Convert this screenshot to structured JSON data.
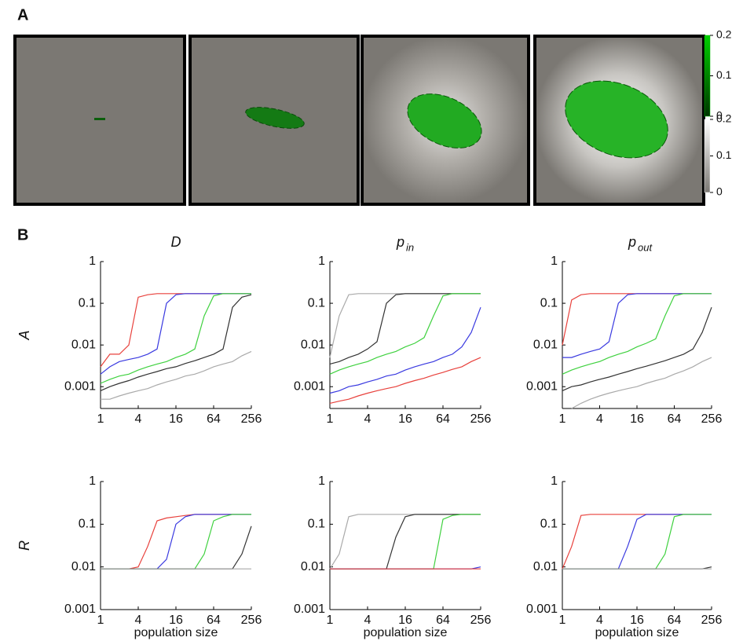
{
  "panel_labels": [
    "A",
    "B"
  ],
  "colorbars": [
    {
      "lim": [
        0,
        0.2
      ],
      "ticks": [
        0.2,
        0.1,
        0
      ],
      "color": "#00c000"
    },
    {
      "lim": [
        0,
        0.2
      ],
      "ticks": [
        0.2,
        0.1,
        0
      ],
      "color": "#ffffff"
    }
  ],
  "chart_data": [
    {
      "type": "line",
      "title": "D",
      "ylabel": "A",
      "xlog": true,
      "ylog": true,
      "x": [
        1,
        1.41,
        2,
        2.83,
        4,
        5.66,
        8,
        11.3,
        16,
        22.6,
        32,
        45.3,
        64,
        90.5,
        128,
        181,
        256
      ],
      "xlim": [
        1,
        256
      ],
      "xticks": [
        1,
        4,
        16,
        64,
        256
      ],
      "ylim": [
        0.0003,
        1
      ],
      "yticks": [
        1,
        0.1,
        0.01,
        0.001
      ],
      "series": [
        {
          "color": "#e8413c",
          "values": [
            0.003,
            0.006,
            0.006,
            0.01,
            0.14,
            0.16,
            0.17,
            0.17,
            0.17,
            0.17,
            0.17,
            0.17,
            0.17,
            0.17,
            0.17,
            0.17,
            0.17
          ]
        },
        {
          "color": "#3a3ae0",
          "values": [
            0.002,
            0.003,
            0.004,
            0.0045,
            0.005,
            0.006,
            0.008,
            0.1,
            0.16,
            0.17,
            0.17,
            0.17,
            0.17,
            0.17,
            0.17,
            0.17,
            0.17
          ]
        },
        {
          "color": "#3fd13f",
          "values": [
            0.0012,
            0.0015,
            0.0018,
            0.002,
            0.0025,
            0.003,
            0.0035,
            0.004,
            0.005,
            0.006,
            0.008,
            0.05,
            0.15,
            0.17,
            0.17,
            0.17,
            0.17
          ]
        },
        {
          "color": "#333333",
          "values": [
            0.0008,
            0.001,
            0.0012,
            0.0014,
            0.0017,
            0.002,
            0.0023,
            0.0027,
            0.003,
            0.0036,
            0.0042,
            0.005,
            0.006,
            0.008,
            0.08,
            0.14,
            0.16
          ]
        },
        {
          "color": "#aaaaaa",
          "values": [
            0.0005,
            0.0005,
            0.0006,
            0.0007,
            0.0008,
            0.0009,
            0.0011,
            0.0013,
            0.0015,
            0.0018,
            0.002,
            0.0024,
            0.003,
            0.0035,
            0.004,
            0.0055,
            0.007
          ]
        }
      ]
    },
    {
      "type": "line",
      "title": "p",
      "title_subscript": "in",
      "xlog": true,
      "ylog": true,
      "x": [
        1,
        1.41,
        2,
        2.83,
        4,
        5.66,
        8,
        11.3,
        16,
        22.6,
        32,
        45.3,
        64,
        90.5,
        128,
        181,
        256
      ],
      "xlim": [
        1,
        256
      ],
      "xticks": [
        1,
        4,
        16,
        64,
        256
      ],
      "ylim": [
        0.0003,
        1
      ],
      "yticks": [
        1,
        0.1,
        0.01,
        0.001
      ],
      "series": [
        {
          "color": "#aaaaaa",
          "values": [
            0.005,
            0.05,
            0.16,
            0.17,
            0.17,
            0.17,
            0.17,
            0.17,
            0.17,
            0.17,
            0.17,
            0.17,
            0.17,
            0.17,
            0.17,
            0.17,
            0.17
          ]
        },
        {
          "color": "#333333",
          "values": [
            0.0035,
            0.004,
            0.005,
            0.006,
            0.008,
            0.012,
            0.1,
            0.16,
            0.17,
            0.17,
            0.17,
            0.17,
            0.17,
            0.17,
            0.17,
            0.17,
            0.17
          ]
        },
        {
          "color": "#3fd13f",
          "values": [
            0.002,
            0.0025,
            0.003,
            0.0035,
            0.004,
            0.005,
            0.006,
            0.007,
            0.009,
            0.011,
            0.015,
            0.05,
            0.15,
            0.17,
            0.17,
            0.17,
            0.17
          ]
        },
        {
          "color": "#3a3ae0",
          "values": [
            0.0007,
            0.0008,
            0.001,
            0.0011,
            0.0013,
            0.0015,
            0.0018,
            0.002,
            0.0025,
            0.003,
            0.0035,
            0.004,
            0.005,
            0.006,
            0.009,
            0.02,
            0.08
          ]
        },
        {
          "color": "#e8413c",
          "values": [
            0.0004,
            0.00045,
            0.0005,
            0.0006,
            0.0007,
            0.0008,
            0.0009,
            0.001,
            0.0012,
            0.0014,
            0.0016,
            0.0019,
            0.0022,
            0.0026,
            0.003,
            0.004,
            0.005
          ]
        }
      ]
    },
    {
      "type": "line",
      "title": "p",
      "title_subscript": "out",
      "xlog": true,
      "ylog": true,
      "x": [
        1,
        1.41,
        2,
        2.83,
        4,
        5.66,
        8,
        11.3,
        16,
        22.6,
        32,
        45.3,
        64,
        90.5,
        128,
        181,
        256
      ],
      "xlim": [
        1,
        256
      ],
      "xticks": [
        1,
        4,
        16,
        64,
        256
      ],
      "ylim": [
        0.0003,
        1
      ],
      "yticks": [
        1,
        0.1,
        0.01,
        0.001
      ],
      "series": [
        {
          "color": "#e8413c",
          "values": [
            0.01,
            0.12,
            0.16,
            0.17,
            0.17,
            0.17,
            0.17,
            0.17,
            0.17,
            0.17,
            0.17,
            0.17,
            0.17,
            0.17,
            0.17,
            0.17,
            0.17
          ]
        },
        {
          "color": "#3a3ae0",
          "values": [
            0.005,
            0.005,
            0.006,
            0.007,
            0.008,
            0.012,
            0.1,
            0.16,
            0.17,
            0.17,
            0.17,
            0.17,
            0.17,
            0.17,
            0.17,
            0.17,
            0.17
          ]
        },
        {
          "color": "#3fd13f",
          "values": [
            0.002,
            0.0025,
            0.003,
            0.0035,
            0.004,
            0.005,
            0.006,
            0.007,
            0.009,
            0.011,
            0.014,
            0.05,
            0.15,
            0.17,
            0.17,
            0.17,
            0.17
          ]
        },
        {
          "color": "#333333",
          "values": [
            0.0008,
            0.001,
            0.0011,
            0.0013,
            0.0015,
            0.0017,
            0.002,
            0.0023,
            0.0027,
            0.0031,
            0.0036,
            0.0042,
            0.005,
            0.006,
            0.008,
            0.02,
            0.08
          ]
        },
        {
          "color": "#aaaaaa",
          "values": [
            null,
            0.0003,
            0.0004,
            0.0005,
            0.0006,
            0.0007,
            0.0008,
            0.0009,
            0.001,
            0.0012,
            0.0014,
            0.0016,
            0.002,
            0.0024,
            0.003,
            0.004,
            0.005
          ]
        }
      ]
    },
    {
      "type": "line",
      "ylabel": "R",
      "xlabel": "population size",
      "xlog": true,
      "ylog": true,
      "x": [
        1,
        1.41,
        2,
        2.83,
        4,
        5.66,
        8,
        11.3,
        16,
        22.6,
        32,
        45.3,
        64,
        90.5,
        128,
        181,
        256
      ],
      "xlim": [
        1,
        256
      ],
      "xticks": [
        1,
        4,
        16,
        64,
        256
      ],
      "ylim": [
        0.001,
        1
      ],
      "yticks": [
        1,
        0.1,
        0.01,
        0.001
      ],
      "series": [
        {
          "color": "#e8413c",
          "values": [
            0.009,
            0.009,
            0.009,
            0.009,
            0.01,
            0.03,
            0.12,
            0.14,
            0.15,
            0.16,
            0.17,
            0.17,
            0.17,
            0.17,
            0.17,
            0.17,
            0.17
          ]
        },
        {
          "color": "#3a3ae0",
          "values": [
            0.009,
            0.009,
            0.009,
            0.009,
            0.009,
            0.009,
            0.009,
            0.015,
            0.1,
            0.15,
            0.17,
            0.17,
            0.17,
            0.17,
            0.17,
            0.17,
            0.17
          ]
        },
        {
          "color": "#3fd13f",
          "values": [
            0.009,
            0.009,
            0.009,
            0.009,
            0.009,
            0.009,
            0.009,
            0.009,
            0.009,
            0.009,
            0.009,
            0.02,
            0.12,
            0.15,
            0.17,
            0.17,
            0.17
          ]
        },
        {
          "color": "#333333",
          "values": [
            0.009,
            0.009,
            0.009,
            0.009,
            0.009,
            0.009,
            0.009,
            0.009,
            0.009,
            0.009,
            0.009,
            0.009,
            0.009,
            0.009,
            0.009,
            0.02,
            0.09
          ]
        },
        {
          "color": "#aaaaaa",
          "values": [
            0.009,
            0.009,
            0.009,
            0.009,
            0.009,
            0.009,
            0.009,
            0.009,
            0.009,
            0.009,
            0.009,
            0.009,
            0.009,
            0.009,
            0.009,
            0.009,
            0.009
          ]
        }
      ]
    },
    {
      "type": "line",
      "xlabel": "population size",
      "xlog": true,
      "ylog": true,
      "x": [
        1,
        1.41,
        2,
        2.83,
        4,
        5.66,
        8,
        11.3,
        16,
        22.6,
        32,
        45.3,
        64,
        90.5,
        128,
        181,
        256
      ],
      "xlim": [
        1,
        256
      ],
      "xticks": [
        1,
        4,
        16,
        64,
        256
      ],
      "ylim": [
        0.001,
        1
      ],
      "yticks": [
        1,
        0.1,
        0.01,
        0.001
      ],
      "series": [
        {
          "color": "#aaaaaa",
          "values": [
            0.009,
            0.02,
            0.15,
            0.17,
            0.17,
            0.17,
            0.17,
            0.17,
            0.17,
            0.17,
            0.17,
            0.17,
            0.17,
            0.17,
            0.17,
            0.17,
            0.17
          ]
        },
        {
          "color": "#333333",
          "values": [
            0.009,
            0.009,
            0.009,
            0.009,
            0.009,
            0.009,
            0.009,
            0.05,
            0.15,
            0.17,
            0.17,
            0.17,
            0.17,
            0.17,
            0.17,
            0.17,
            0.17
          ]
        },
        {
          "color": "#3fd13f",
          "values": [
            0.009,
            0.009,
            0.009,
            0.009,
            0.009,
            0.009,
            0.009,
            0.009,
            0.009,
            0.009,
            0.009,
            0.009,
            0.13,
            0.16,
            0.17,
            0.17,
            0.17
          ]
        },
        {
          "color": "#3a3ae0",
          "values": [
            0.009,
            0.009,
            0.009,
            0.009,
            0.009,
            0.009,
            0.009,
            0.009,
            0.009,
            0.009,
            0.009,
            0.009,
            0.009,
            0.009,
            0.009,
            0.009,
            0.01
          ]
        },
        {
          "color": "#e8413c",
          "values": [
            0.009,
            0.009,
            0.009,
            0.009,
            0.009,
            0.009,
            0.009,
            0.009,
            0.009,
            0.009,
            0.009,
            0.009,
            0.009,
            0.009,
            0.009,
            0.009,
            0.009
          ]
        }
      ]
    },
    {
      "type": "line",
      "xlabel": "population size",
      "xlog": true,
      "ylog": true,
      "x": [
        1,
        1.41,
        2,
        2.83,
        4,
        5.66,
        8,
        11.3,
        16,
        22.6,
        32,
        45.3,
        64,
        90.5,
        128,
        181,
        256
      ],
      "xlim": [
        1,
        256
      ],
      "xticks": [
        1,
        4,
        16,
        64,
        256
      ],
      "ylim": [
        0.001,
        1
      ],
      "yticks": [
        1,
        0.1,
        0.01,
        0.001
      ],
      "series": [
        {
          "color": "#e8413c",
          "values": [
            0.009,
            0.03,
            0.16,
            0.17,
            0.17,
            0.17,
            0.17,
            0.17,
            0.17,
            0.17,
            0.17,
            0.17,
            0.17,
            0.17,
            0.17,
            0.17,
            0.17
          ]
        },
        {
          "color": "#3a3ae0",
          "values": [
            0.009,
            0.009,
            0.009,
            0.009,
            0.009,
            0.009,
            0.009,
            0.03,
            0.13,
            0.17,
            0.17,
            0.17,
            0.17,
            0.17,
            0.17,
            0.17,
            0.17
          ]
        },
        {
          "color": "#3fd13f",
          "values": [
            0.009,
            0.009,
            0.009,
            0.009,
            0.009,
            0.009,
            0.009,
            0.009,
            0.009,
            0.009,
            0.009,
            0.02,
            0.15,
            0.17,
            0.17,
            0.17,
            0.17
          ]
        },
        {
          "color": "#333333",
          "values": [
            0.009,
            0.009,
            0.009,
            0.009,
            0.009,
            0.009,
            0.009,
            0.009,
            0.009,
            0.009,
            0.009,
            0.009,
            0.009,
            0.009,
            0.009,
            0.009,
            0.01
          ]
        },
        {
          "color": "#aaaaaa",
          "values": [
            0.009,
            0.009,
            0.009,
            0.009,
            0.009,
            0.009,
            0.009,
            0.009,
            0.009,
            0.009,
            0.009,
            0.009,
            0.009,
            0.009,
            0.009,
            0.009,
            0.009
          ]
        }
      ]
    }
  ]
}
